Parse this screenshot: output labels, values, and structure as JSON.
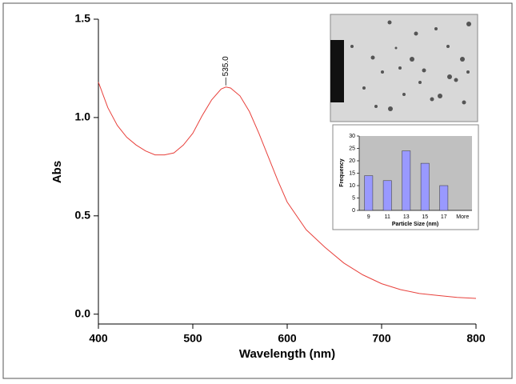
{
  "chart_data": [
    {
      "type": "line",
      "xlabel": "Wavelength (nm)",
      "ylabel": "Abs",
      "x": [
        400,
        410,
        420,
        430,
        440,
        450,
        460,
        470,
        480,
        490,
        500,
        510,
        520,
        530,
        535,
        540,
        550,
        560,
        570,
        580,
        590,
        600,
        620,
        640,
        660,
        680,
        700,
        720,
        740,
        760,
        780,
        800
      ],
      "values": [
        1.18,
        1.05,
        0.96,
        0.9,
        0.86,
        0.83,
        0.81,
        0.81,
        0.82,
        0.86,
        0.92,
        1.01,
        1.09,
        1.145,
        1.155,
        1.15,
        1.11,
        1.03,
        0.92,
        0.8,
        0.68,
        0.57,
        0.43,
        0.34,
        0.26,
        0.2,
        0.155,
        0.125,
        0.105,
        0.095,
        0.085,
        0.08
      ],
      "color": "#e8413c",
      "xlim": [
        400,
        800
      ],
      "xticks": [
        400,
        500,
        600,
        700,
        800
      ],
      "ylim": [
        -0.05,
        1.5
      ],
      "yticks": [
        {
          "value": 0,
          "label": "0.0"
        },
        0.5,
        {
          "value": 1,
          "label": "1.0"
        },
        1.5
      ],
      "peak_label": {
        "value": 535,
        "label": "535.0"
      },
      "grid": false
    },
    {
      "type": "bar",
      "xlabel": "Particle Size (nm)",
      "ylabel": "Frequency",
      "categories": [
        "9",
        "11",
        "13",
        "15",
        "17",
        "More"
      ],
      "values": [
        14,
        12,
        24,
        19,
        10,
        0
      ],
      "color": "#9999ff",
      "ylim": [
        0,
        30
      ],
      "yticks": [
        0,
        5,
        10,
        15,
        20,
        25,
        30
      ],
      "grid": false
    }
  ]
}
